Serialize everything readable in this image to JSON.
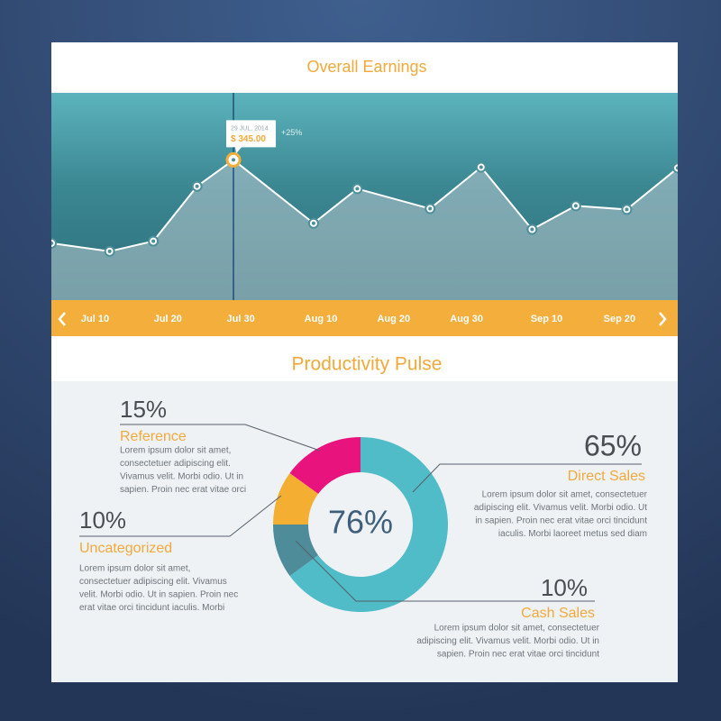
{
  "chart_data": [
    {
      "type": "line",
      "title": "Overall Earnings",
      "x": [
        "Jul 4",
        "Jul 12",
        "Jul 18",
        "Jul 24",
        "Jul 29",
        "Aug 9",
        "Aug 15",
        "Aug 25",
        "Sep 1",
        "Sep 8",
        "Sep 14",
        "Sep 21",
        "Sep 28"
      ],
      "values": [
        140,
        120,
        145,
        280,
        345,
        189,
        274,
        225,
        327,
        174,
        232,
        223,
        325
      ],
      "value_labels": [
        null,
        null,
        null,
        null,
        "$ 345.00",
        null,
        null,
        null,
        null,
        null,
        null,
        null,
        null
      ],
      "annotation_date": "29 JUL, 2014",
      "annotation_change": "+25%",
      "xlim": [
        "Jul 4",
        "Sep 28"
      ],
      "xticks": [
        "Jul 10",
        "Jul 20",
        "Jul 30",
        "Aug 10",
        "Aug 20",
        "Aug 30",
        "Sep 10",
        "Sep 20"
      ],
      "ylim": [
        0,
        510
      ],
      "color": "#ffffff"
    },
    {
      "type": "pie",
      "title": "Productivity Pulse",
      "center_label": "76%",
      "categories": [
        "Direct Sales",
        "Cash Sales",
        "Uncategorized",
        "Reference"
      ],
      "values": [
        65,
        10,
        10,
        15
      ],
      "value_labels": [
        "65%",
        "10%",
        "10%",
        "15%"
      ],
      "colors": [
        "#4fbcc8",
        "#4f8c99",
        "#f4ae32",
        "#e8137d"
      ],
      "descriptions": [
        [
          "Lorem ipsum dolor sit amet, consectetuer",
          "adipiscing elit. Vivamus velit. Morbi odio. Ut",
          "in sapien. Proin nec erat vitae orci tincidunt",
          "iaculis. Morbi laoreet metus sed diam"
        ],
        [
          "Lorem ipsum dolor sit amet, consectetuer",
          "adipiscing elit. Vivamus velit. Morbi odio. Ut in",
          "sapien. Proin nec erat vitae orci tincidunt"
        ],
        [
          "Lorem ipsum dolor sit amet,",
          "consectetuer adipiscing elit. Vivamus",
          "velit. Morbi odio. Ut in sapien. Proin nec",
          "erat vitae orci tincidunt iaculis. Morbi"
        ],
        [
          "Lorem ipsum dolor sit amet,",
          "consectetuer adipiscing elit.",
          "Vivamus velit. Morbi odio. Ut in",
          "sapien. Proin nec erat vitae orci"
        ]
      ]
    }
  ]
}
